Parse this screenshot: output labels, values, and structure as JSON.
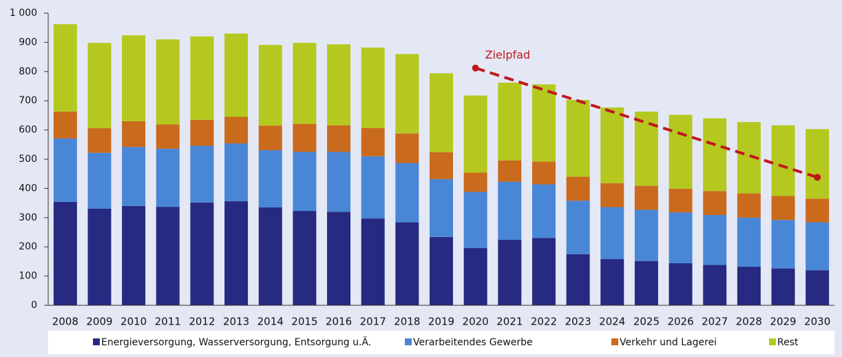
{
  "chart_data": {
    "type": "stacked-bar",
    "categories": [
      "2008",
      "2009",
      "2010",
      "2011",
      "2012",
      "2013",
      "2014",
      "2015",
      "2016",
      "2017",
      "2018",
      "2019",
      "2020",
      "2021",
      "2022",
      "2023",
      "2024",
      "2025",
      "2026",
      "2027",
      "2028",
      "2029",
      "2030"
    ],
    "series": [
      {
        "name": "Energieversorgung, Wasserversorgung, Entsorgung u.Ä.",
        "color": "#262a80",
        "values": [
          354,
          331,
          340,
          337,
          352,
          356,
          335,
          323,
          320,
          297,
          284,
          234,
          196,
          224,
          230,
          175,
          158,
          151,
          144,
          138,
          132,
          126,
          120
        ]
      },
      {
        "name": "Verarbeitendes Gewerbe",
        "color": "#4a86d6",
        "values": [
          217,
          191,
          202,
          199,
          194,
          198,
          196,
          202,
          205,
          213,
          203,
          198,
          192,
          199,
          184,
          183,
          178,
          176,
          174,
          171,
          168,
          166,
          164
        ]
      },
      {
        "name": "Verkehr und Lagerei",
        "color": "#c96a1d",
        "values": [
          92,
          84,
          88,
          83,
          89,
          91,
          84,
          96,
          91,
          97,
          101,
          92,
          66,
          73,
          78,
          82,
          82,
          82,
          81,
          82,
          83,
          82,
          81
        ]
      },
      {
        "name": "Rest",
        "color": "#b5c81f",
        "values": [
          299,
          292,
          294,
          291,
          285,
          285,
          276,
          277,
          277,
          275,
          272,
          270,
          264,
          266,
          264,
          263,
          259,
          254,
          253,
          249,
          244,
          242,
          238
        ]
      }
    ],
    "target": {
      "name": "Zielpfad",
      "color": "#c0161e",
      "values": [
        null,
        null,
        null,
        null,
        null,
        null,
        null,
        null,
        null,
        null,
        null,
        null,
        812,
        774.6,
        737.2,
        699.8,
        662.4,
        625,
        587.6,
        550.2,
        512.8,
        475.4,
        438
      ]
    },
    "ylim": [
      0,
      1000
    ],
    "yticks": [
      0,
      100,
      200,
      300,
      400,
      500,
      600,
      700,
      800,
      900,
      {
        "value": 1000,
        "label": "1 000"
      }
    ],
    "grid": false
  }
}
